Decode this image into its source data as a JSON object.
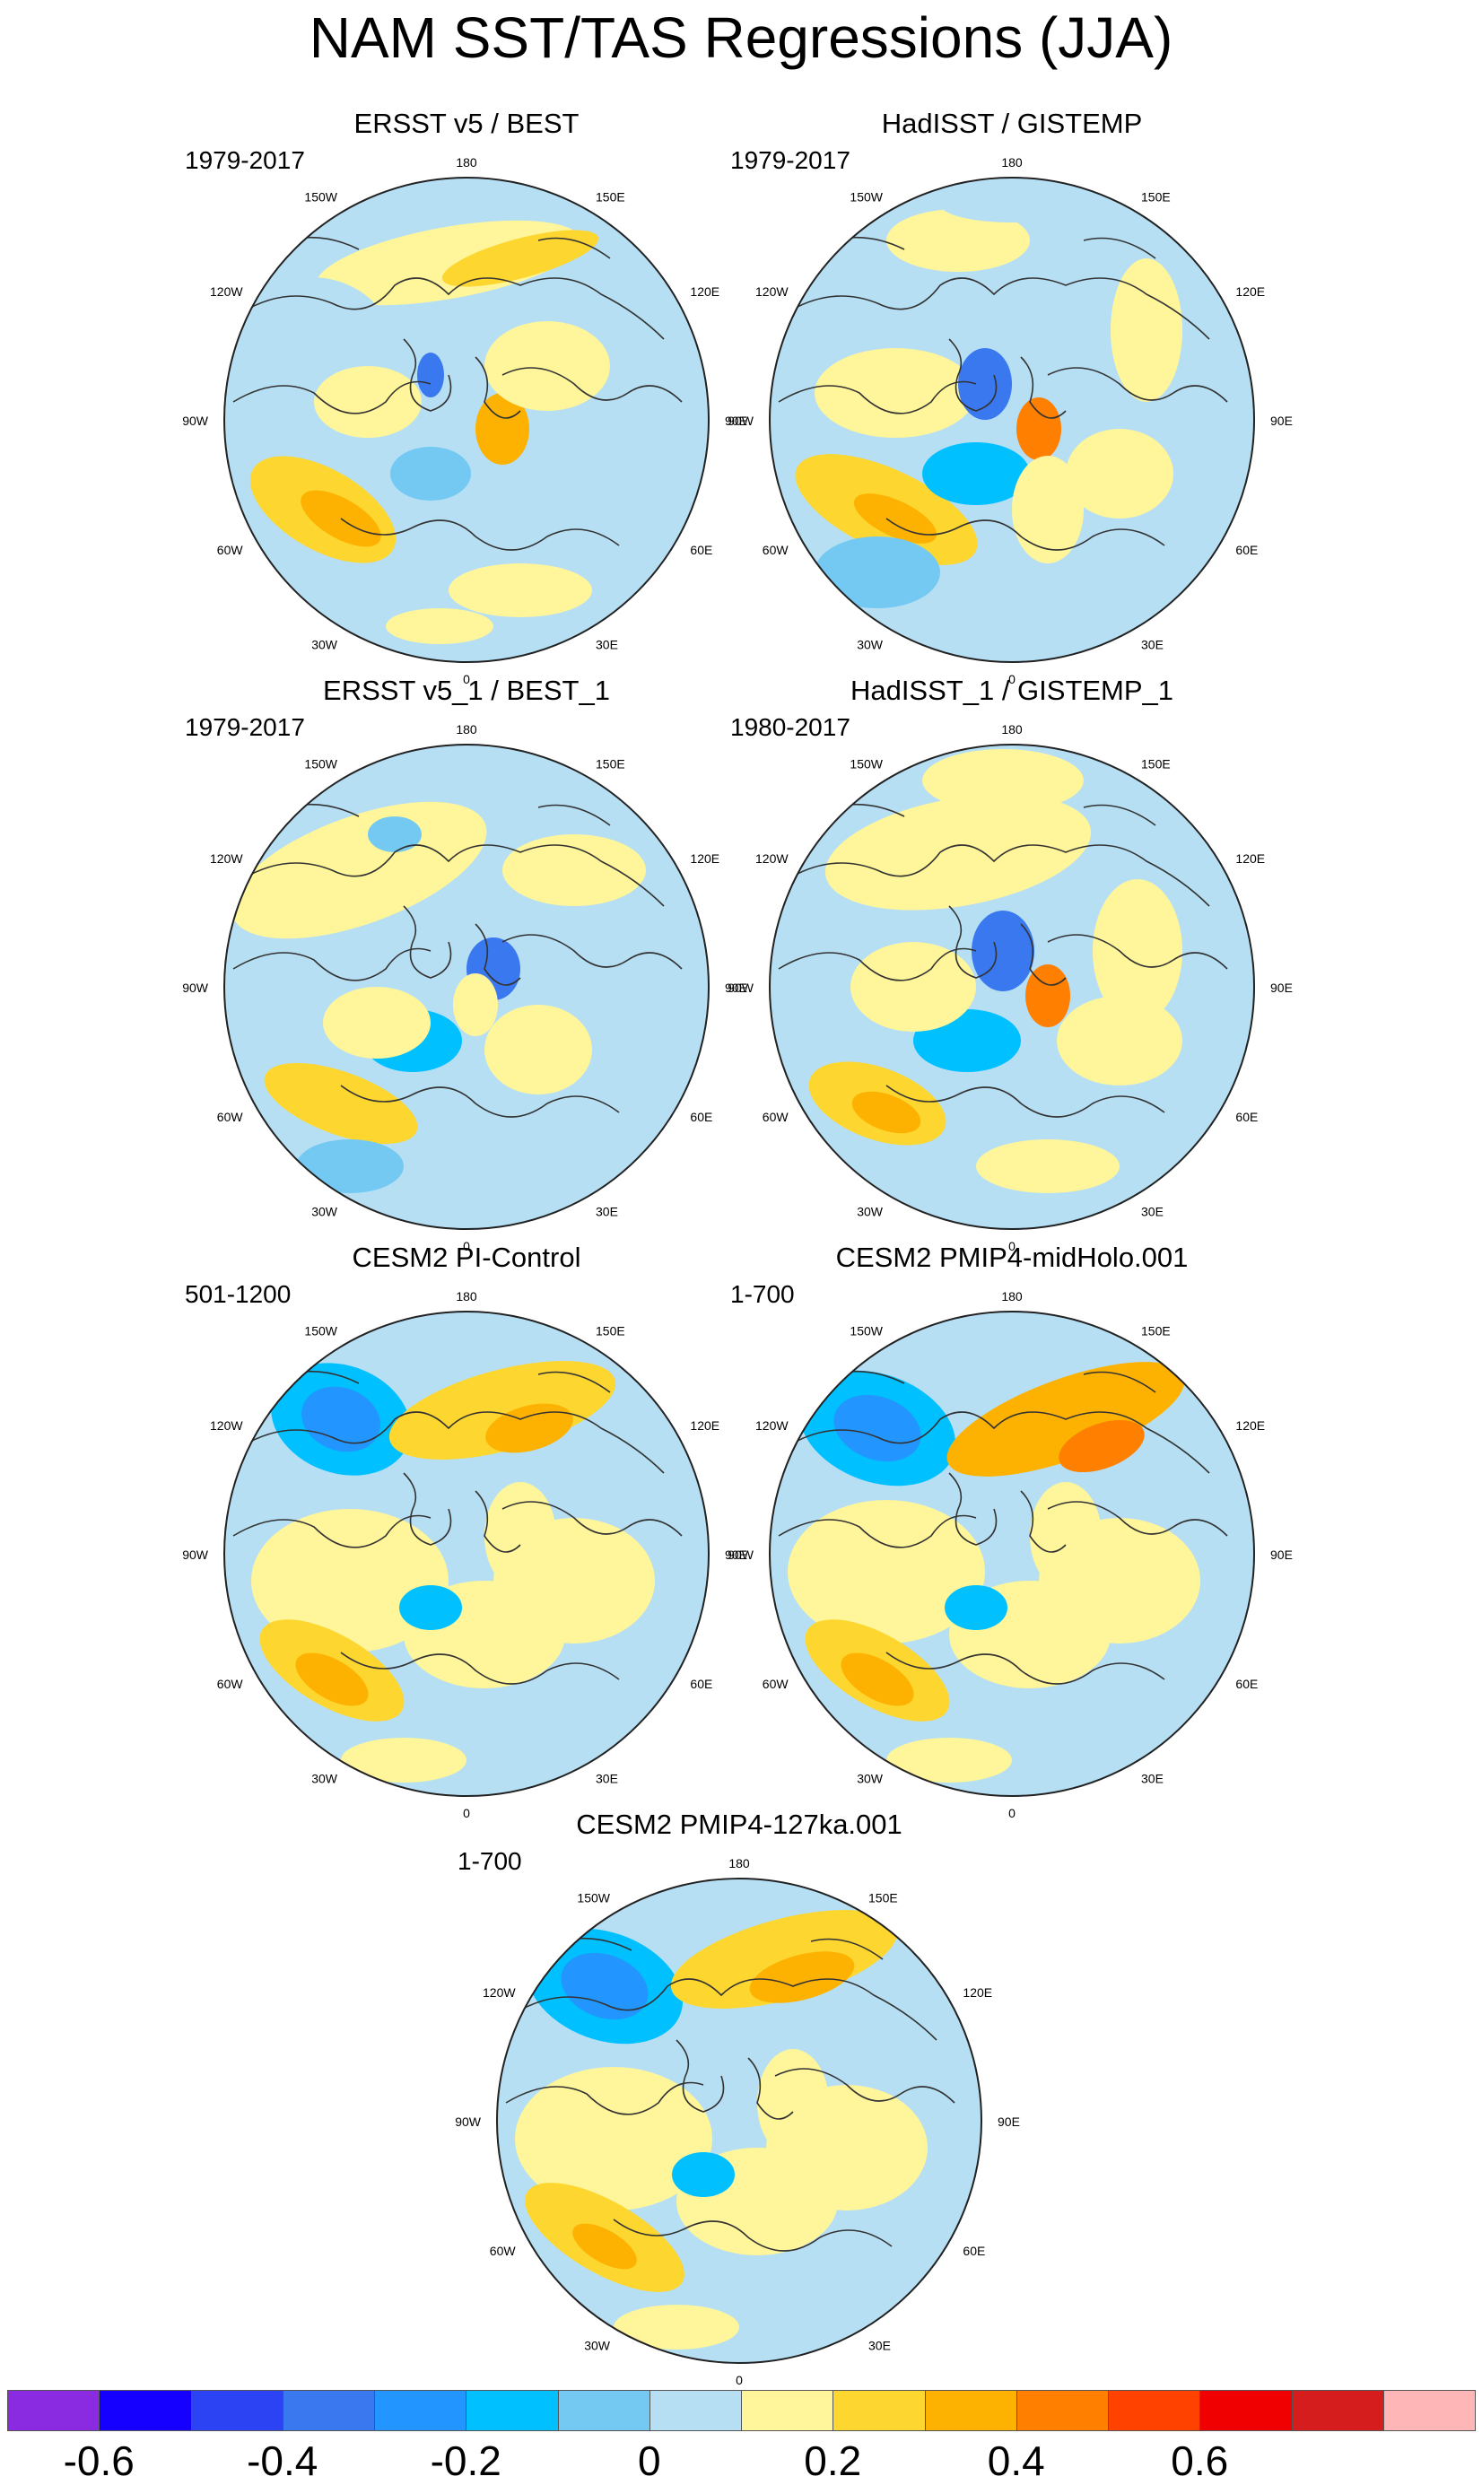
{
  "figure": {
    "title": "NAM SST/TAS Regressions (JJA)"
  },
  "panels": [
    {
      "title": "ERSST v5 / BEST",
      "period": "1979-2017",
      "variant": "obs1"
    },
    {
      "title": "HadISST / GISTEMP",
      "period": "1979-2017",
      "variant": "obs2"
    },
    {
      "title": "ERSST v5_1 / BEST_1",
      "period": "1979-2017",
      "variant": "obs3"
    },
    {
      "title": "HadISST_1 / GISTEMP_1",
      "period": "1980-2017",
      "variant": "obs4"
    },
    {
      "title": "CESM2 PI-Control",
      "period": "501-1200",
      "variant": "model1"
    },
    {
      "title": "CESM2 PMIP4-midHolo.001",
      "period": "1-700",
      "variant": "model2"
    },
    {
      "title": "CESM2 PMIP4-127ka.001",
      "period": "1-700",
      "variant": "model3"
    }
  ],
  "longitude_labels": [
    "180",
    "150E",
    "120E",
    "90E",
    "60E",
    "30E",
    "0",
    "30W",
    "60W",
    "90W",
    "120W",
    "150W"
  ],
  "colorbar": {
    "colors": [
      "#8a2be2",
      "#1500ff",
      "#2b43f2",
      "#3a78f0",
      "#2295ff",
      "#00c0ff",
      "#74c9f3",
      "#b6dff4",
      "#fff59a",
      "#fdd630",
      "#fdb202",
      "#ff7f00",
      "#ff4200",
      "#f00000",
      "#d61d1d",
      "#ffb6b6"
    ],
    "tick_labels": [
      "-0.6",
      "-0.4",
      "-0.2",
      "0",
      "0.2",
      "0.4",
      "0.6"
    ],
    "tick_values": [
      -0.6,
      -0.4,
      -0.2,
      0,
      0.2,
      0.4,
      0.6
    ]
  }
}
